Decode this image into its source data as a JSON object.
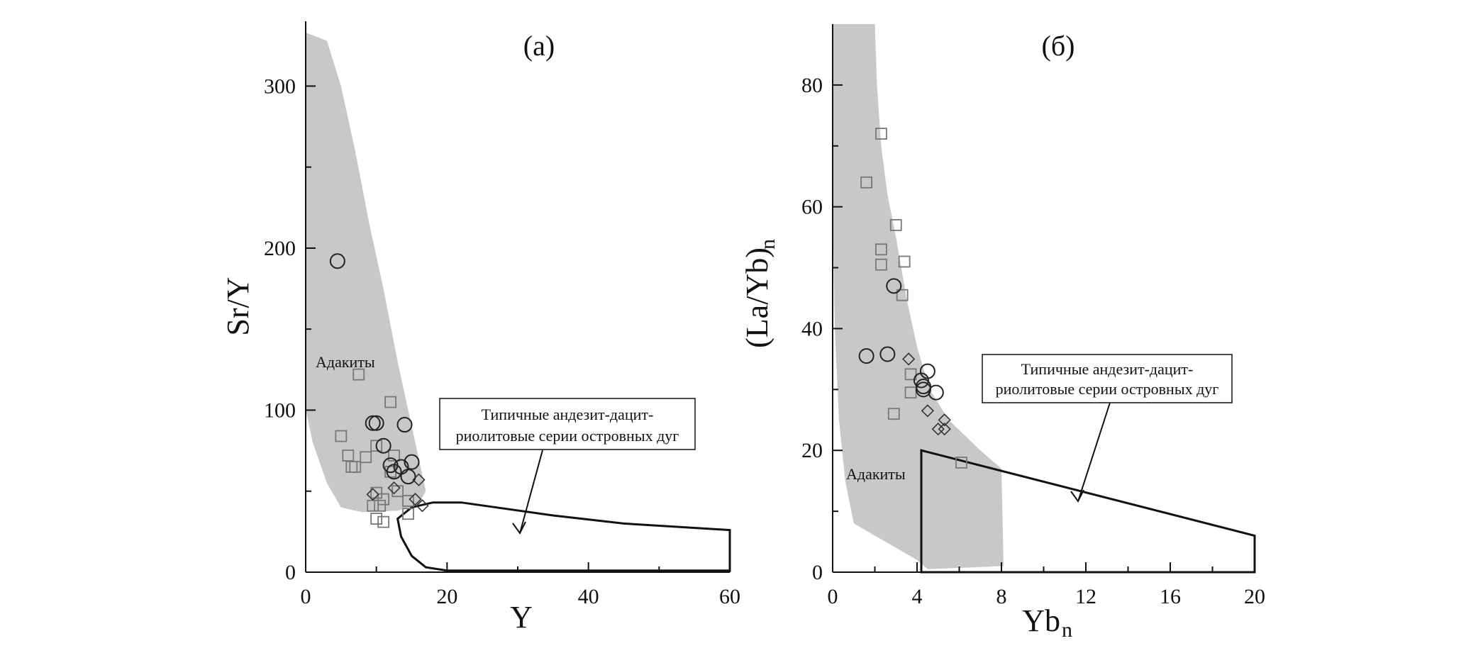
{
  "colors": {
    "adakite_field": "#c8c8c8",
    "axis": "#111111",
    "square_marker": "#777777",
    "circle_marker": "#222222",
    "diamond_marker": "#333333"
  },
  "chart_data": [
    {
      "type": "scatter",
      "panel_label": "(а)",
      "xlabel": "Y",
      "ylabel": "Sr/Y",
      "xlim": [
        0,
        60
      ],
      "ylim": [
        0,
        340
      ],
      "x_ticks": [
        0,
        20,
        40,
        60
      ],
      "y_ticks": [
        0,
        100,
        200,
        300
      ],
      "x_tick_labels": [
        "0",
        "20",
        "40",
        "60"
      ],
      "y_tick_labels": [
        "0",
        "100",
        "200",
        "300"
      ],
      "adakite_label": "Адакиты",
      "arc_annotation": [
        "Типичные андезит-дацит-",
        "риолитовые серии островных дуг"
      ],
      "adakite_field": [
        [
          0,
          333
        ],
        [
          3,
          328
        ],
        [
          5,
          300
        ],
        [
          7,
          260
        ],
        [
          9,
          215
        ],
        [
          11,
          175
        ],
        [
          13,
          130
        ],
        [
          15,
          90
        ],
        [
          16.5,
          60
        ],
        [
          17,
          50
        ],
        [
          16,
          42
        ],
        [
          13,
          38
        ],
        [
          8,
          37
        ],
        [
          5,
          40
        ],
        [
          3,
          55
        ],
        [
          1,
          80
        ],
        [
          0,
          100
        ]
      ],
      "arc_field": [
        [
          60,
          26
        ],
        [
          45,
          30
        ],
        [
          35,
          35
        ],
        [
          22,
          43
        ],
        [
          18,
          43
        ],
        [
          15,
          40
        ],
        [
          13,
          33
        ],
        [
          13.5,
          22
        ],
        [
          15,
          10
        ],
        [
          17,
          3
        ],
        [
          20,
          1
        ],
        [
          40,
          1
        ],
        [
          60,
          1
        ]
      ],
      "squares": [
        [
          7.5,
          122
        ],
        [
          12,
          105
        ],
        [
          5,
          84
        ],
        [
          6,
          72
        ],
        [
          6.5,
          65
        ],
        [
          7,
          65
        ],
        [
          8.5,
          71
        ],
        [
          10,
          78
        ],
        [
          12.5,
          72
        ],
        [
          12,
          62
        ],
        [
          13,
          50
        ],
        [
          10,
          49
        ],
        [
          11,
          45
        ],
        [
          9.5,
          41
        ],
        [
          10.5,
          41
        ],
        [
          14.5,
          44
        ],
        [
          14.5,
          36
        ],
        [
          10,
          33
        ],
        [
          11,
          31
        ]
      ],
      "circles": [
        [
          4.5,
          192
        ],
        [
          9.5,
          92
        ],
        [
          10,
          92
        ],
        [
          14,
          91
        ],
        [
          11,
          78
        ],
        [
          12,
          66
        ],
        [
          13.5,
          65
        ],
        [
          12.5,
          62
        ],
        [
          15,
          68
        ],
        [
          14.5,
          59
        ]
      ],
      "diamonds": [
        [
          9.5,
          48
        ],
        [
          12.5,
          52
        ],
        [
          16,
          57
        ],
        [
          15.5,
          45
        ],
        [
          16.5,
          41
        ]
      ]
    },
    {
      "type": "scatter",
      "panel_label": "(б)",
      "xlabel": "Yb",
      "xlabel_sub": "n",
      "ylabel": "(La/Yb)",
      "ylabel_sub": "n",
      "xlim": [
        0,
        20
      ],
      "ylim": [
        0,
        90
      ],
      "x_ticks": [
        0,
        4,
        8,
        12,
        16,
        20
      ],
      "y_ticks": [
        0,
        20,
        40,
        60,
        80
      ],
      "x_tick_labels": [
        "0",
        "4",
        "8",
        "12",
        "16",
        "20"
      ],
      "y_tick_labels": [
        "0",
        "20",
        "40",
        "60",
        "80"
      ],
      "adakite_label": "Адакиты",
      "arc_annotation": [
        "Типичные андезит-дацит-",
        "риолитовые серии островных дуг"
      ],
      "adakite_field": [
        [
          0,
          90
        ],
        [
          2,
          90
        ],
        [
          2.1,
          80
        ],
        [
          2.3,
          70
        ],
        [
          2.6,
          62
        ],
        [
          3,
          55
        ],
        [
          3.5,
          45
        ],
        [
          4,
          37
        ],
        [
          4.6,
          30
        ],
        [
          5.5,
          25
        ],
        [
          7,
          20
        ],
        [
          8,
          17
        ],
        [
          8.1,
          1
        ],
        [
          4.5,
          0.5
        ],
        [
          4,
          2
        ],
        [
          3,
          4
        ],
        [
          2,
          6
        ],
        [
          1,
          8
        ],
        [
          0.6,
          15
        ],
        [
          0.3,
          25
        ],
        [
          0.1,
          40
        ],
        [
          0,
          60
        ]
      ],
      "arc_field": [
        [
          4.2,
          0
        ],
        [
          4.2,
          20
        ],
        [
          20,
          6
        ],
        [
          20,
          0
        ]
      ],
      "squares": [
        [
          2.3,
          72
        ],
        [
          1.6,
          64
        ],
        [
          3,
          57
        ],
        [
          2.3,
          53
        ],
        [
          2.3,
          50.5
        ],
        [
          3.4,
          51
        ],
        [
          3.3,
          45.5
        ],
        [
          3.7,
          32.5
        ],
        [
          3.7,
          29.5
        ],
        [
          2.9,
          26
        ],
        [
          6.1,
          18
        ]
      ],
      "circles": [
        [
          2.9,
          47
        ],
        [
          1.6,
          35.5
        ],
        [
          2.6,
          35.8
        ],
        [
          4.5,
          33
        ],
        [
          4.2,
          31.5
        ],
        [
          4.3,
          30.5
        ],
        [
          4.3,
          30
        ],
        [
          4.9,
          29.5
        ]
      ],
      "diamonds": [
        [
          3.6,
          35
        ],
        [
          4.5,
          26.5
        ],
        [
          5.3,
          25
        ],
        [
          5,
          23.5
        ],
        [
          5.3,
          23.5
        ]
      ]
    }
  ]
}
